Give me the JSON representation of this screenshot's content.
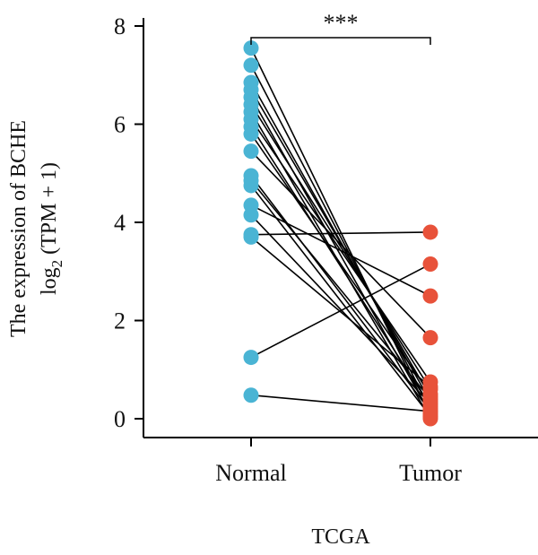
{
  "chart_data": {
    "type": "paired-dot",
    "categories": [
      "Normal",
      "Tumor"
    ],
    "xlabel": "TCGA",
    "ylabel_line1": "The expression of BCHE",
    "ylabel_line2_prefix": "log",
    "ylabel_line2_sub": "2",
    "ylabel_line2_suffix": " (TPM + 1)",
    "ylim": [
      0,
      8
    ],
    "yticks": [
      "0",
      "2",
      "4",
      "6",
      "8"
    ],
    "significance": "***",
    "colors": {
      "Normal": "#4ab4d4",
      "Tumor": "#e8523a",
      "line": "#000000"
    },
    "pairs": [
      {
        "normal": 7.55,
        "tumor": 0.05
      },
      {
        "normal": 7.2,
        "tumor": 0.2
      },
      {
        "normal": 6.85,
        "tumor": 0.35
      },
      {
        "normal": 6.7,
        "tumor": 0.45
      },
      {
        "normal": 6.55,
        "tumor": 0.1
      },
      {
        "normal": 6.4,
        "tumor": 0.6
      },
      {
        "normal": 6.25,
        "tumor": 0.0
      },
      {
        "normal": 6.1,
        "tumor": 0.75
      },
      {
        "normal": 5.95,
        "tumor": 0.25
      },
      {
        "normal": 5.8,
        "tumor": 0.5
      },
      {
        "normal": 5.45,
        "tumor": 1.65
      },
      {
        "normal": 4.95,
        "tumor": 0.15
      },
      {
        "normal": 4.85,
        "tumor": 0.4
      },
      {
        "normal": 4.75,
        "tumor": 0.05
      },
      {
        "normal": 4.35,
        "tumor": 2.5
      },
      {
        "normal": 4.15,
        "tumor": 0.3
      },
      {
        "normal": 3.75,
        "tumor": 3.8
      },
      {
        "normal": 3.7,
        "tumor": 0.65
      },
      {
        "normal": 1.25,
        "tumor": 3.15
      },
      {
        "normal": 0.48,
        "tumor": 0.15
      }
    ]
  }
}
